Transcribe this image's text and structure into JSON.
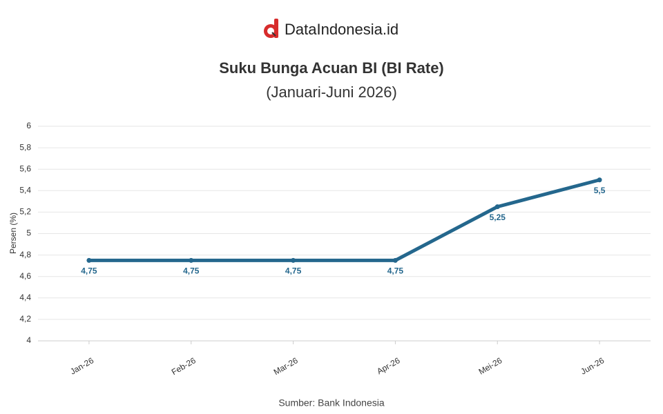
{
  "chart_data": {
    "type": "line",
    "brand": "DataIndonesia.id",
    "title": "Suku Bunga Acuan BI (BI Rate)",
    "subtitle": "(Januari-Juni 2026)",
    "y_label": "Persen (%)",
    "source": "Sumber: Bank Indonesia",
    "categories": [
      "Jan-26",
      "Feb-26",
      "Mar-26",
      "Apr-26",
      "Mei-26",
      "Jun-26"
    ],
    "values": [
      4.75,
      4.75,
      4.75,
      4.75,
      5.25,
      5.5
    ],
    "value_labels": [
      "4,75",
      "4,75",
      "4,75",
      "4,75",
      "5,25",
      "5,5"
    ],
    "color": "#24678d",
    "ylim": [
      4,
      6
    ],
    "yticks": [
      4,
      {
        "value": 4.2,
        "label": "4,2"
      },
      {
        "value": 4.4,
        "label": "4,4"
      },
      {
        "value": 4.6,
        "label": "4,6"
      },
      {
        "value": 4.8,
        "label": "4,8"
      },
      5,
      {
        "value": 5.2,
        "label": "5,2"
      },
      {
        "value": 5.4,
        "label": "5,4"
      },
      {
        "value": 5.6,
        "label": "5,6"
      },
      {
        "value": 5.8,
        "label": "5,8"
      },
      6
    ],
    "grid": true
  }
}
